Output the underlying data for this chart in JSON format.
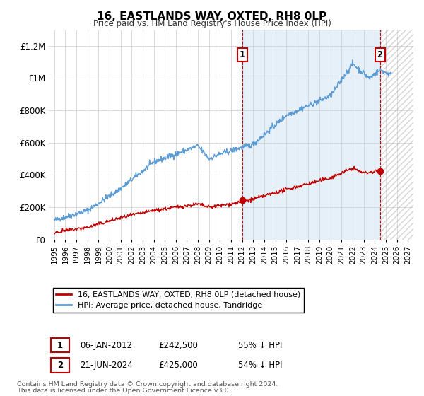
{
  "title": "16, EASTLANDS WAY, OXTED, RH8 0LP",
  "subtitle": "Price paid vs. HM Land Registry's House Price Index (HPI)",
  "legend_line1": "16, EASTLANDS WAY, OXTED, RH8 0LP (detached house)",
  "legend_line2": "HPI: Average price, detached house, Tandridge",
  "point1_date": "06-JAN-2012",
  "point1_price": "£242,500",
  "point1_pct": "55% ↓ HPI",
  "point1_x": 2012.02,
  "point1_y": 242500,
  "point2_date": "21-JUN-2024",
  "point2_price": "£425,000",
  "point2_pct": "54% ↓ HPI",
  "point2_x": 2024.47,
  "point2_y": 425000,
  "ylim": [
    0,
    1300000
  ],
  "xlim": [
    1994.5,
    2027.5
  ],
  "yticks": [
    0,
    200000,
    400000,
    600000,
    800000,
    1000000,
    1200000
  ],
  "ytick_labels": [
    "£0",
    "£200K",
    "£400K",
    "£600K",
    "£800K",
    "£1M",
    "£1.2M"
  ],
  "xticks": [
    1995,
    1996,
    1997,
    1998,
    1999,
    2000,
    2001,
    2002,
    2003,
    2004,
    2005,
    2006,
    2007,
    2008,
    2009,
    2010,
    2011,
    2012,
    2013,
    2014,
    2015,
    2016,
    2017,
    2018,
    2019,
    2020,
    2021,
    2022,
    2023,
    2024,
    2025,
    2026,
    2027
  ],
  "hpi_color": "#5b9bd5",
  "price_color": "#c00000",
  "annotation_box_color": "#c00000",
  "blue_shade_color": "#ddeeff",
  "hatch_color": "#bbbbbb",
  "footer_line1": "Contains HM Land Registry data © Crown copyright and database right 2024.",
  "footer_line2": "This data is licensed under the Open Government Licence v3.0.",
  "hatch_start": 2024.47,
  "blue_shade_start": 2012.02
}
